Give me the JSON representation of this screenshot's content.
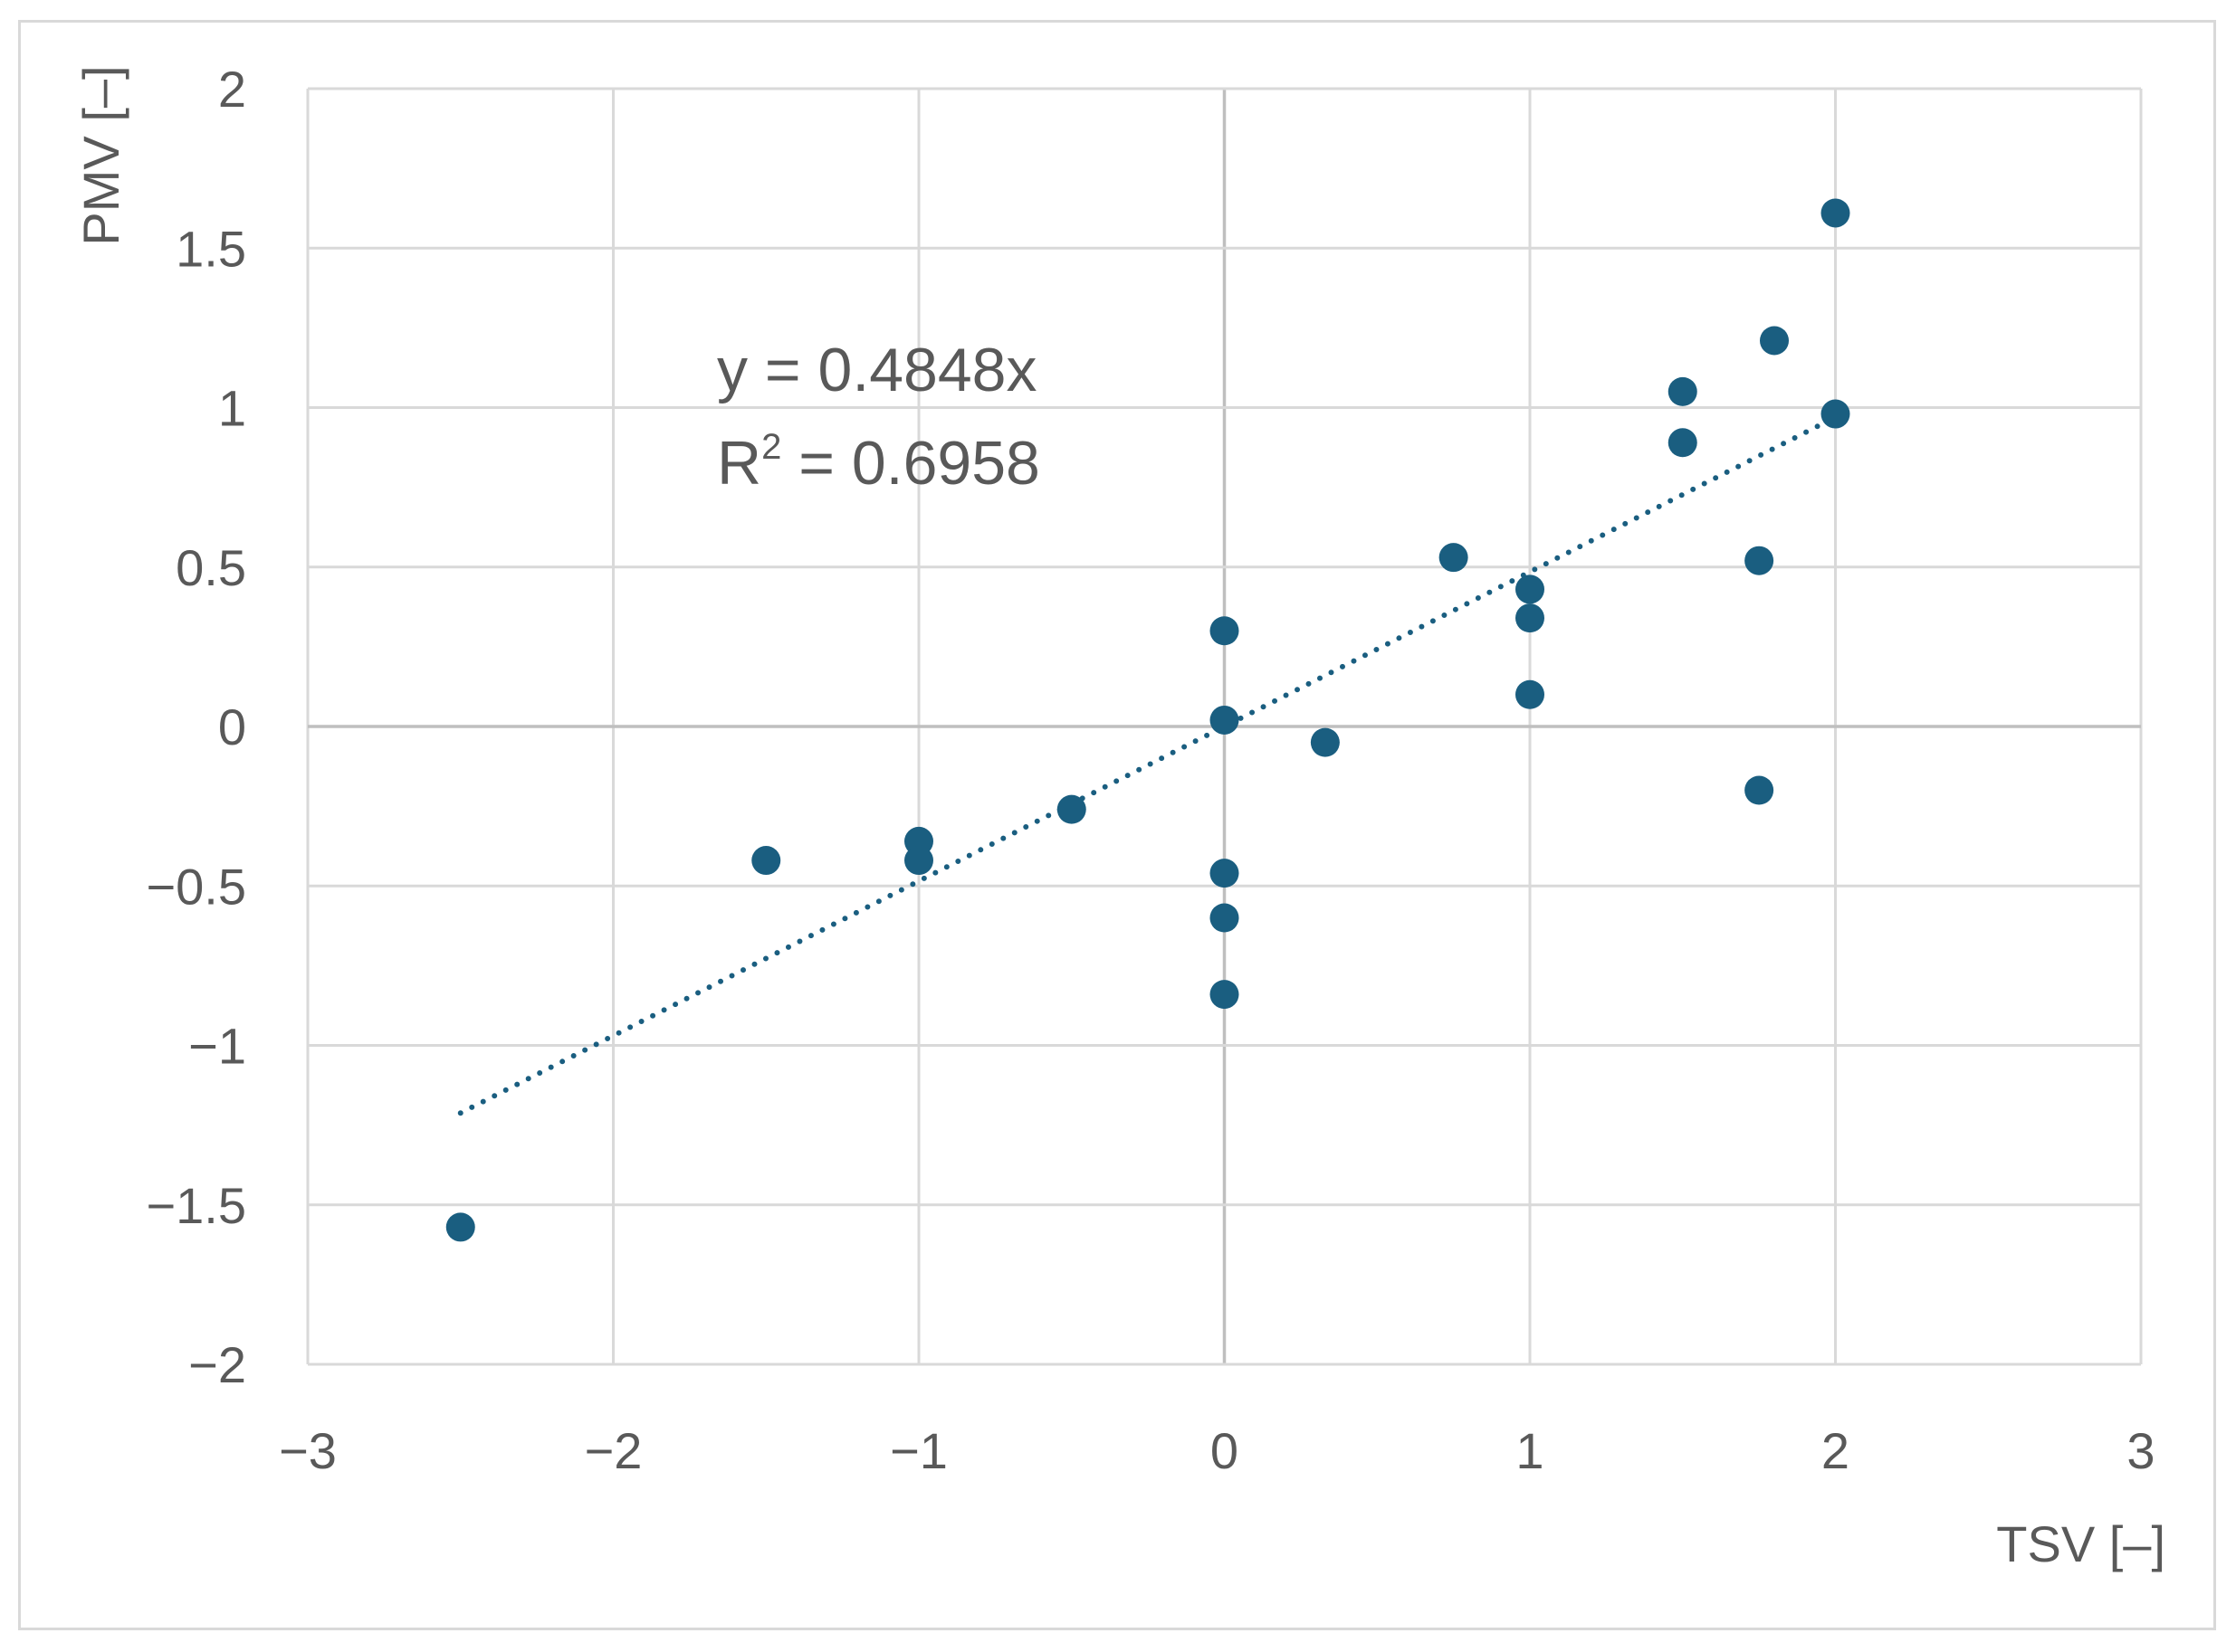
{
  "chart_data": {
    "type": "scatter",
    "xlabel": "TSV [–]",
    "ylabel": "PMV [–]",
    "xlim": [
      -3,
      3
    ],
    "ylim": [
      -2,
      2
    ],
    "x_ticks": [
      -3,
      -2,
      -1,
      0,
      1,
      2,
      3
    ],
    "y_ticks": [
      -2,
      -1.5,
      -1,
      -0.5,
      0,
      0.5,
      1,
      1.5,
      2
    ],
    "x_tick_labels": [
      "−3",
      "−2",
      "−1",
      "0",
      "1",
      "2",
      "3"
    ],
    "y_tick_labels": [
      "−2",
      "−1.5",
      "−1",
      "−0.5",
      "0",
      "0.5",
      "1",
      "1.5",
      "2"
    ],
    "grid": true,
    "marker_color": "#1a5e80",
    "points": [
      {
        "x": -2.5,
        "y": -1.57
      },
      {
        "x": -1.5,
        "y": -0.42
      },
      {
        "x": -1.0,
        "y": -0.36
      },
      {
        "x": -1.0,
        "y": -0.42
      },
      {
        "x": -0.5,
        "y": -0.26
      },
      {
        "x": 0.0,
        "y": 0.3
      },
      {
        "x": 0.0,
        "y": 0.02
      },
      {
        "x": 0.0,
        "y": -0.46
      },
      {
        "x": 0.0,
        "y": -0.6
      },
      {
        "x": 0.0,
        "y": -0.84
      },
      {
        "x": 0.33,
        "y": -0.05
      },
      {
        "x": 0.75,
        "y": 0.53
      },
      {
        "x": 1.0,
        "y": 0.43
      },
      {
        "x": 1.0,
        "y": 0.34
      },
      {
        "x": 1.0,
        "y": 0.1
      },
      {
        "x": 1.5,
        "y": 1.05
      },
      {
        "x": 1.5,
        "y": 0.89
      },
      {
        "x": 1.75,
        "y": 0.52
      },
      {
        "x": 1.75,
        "y": -0.2
      },
      {
        "x": 1.8,
        "y": 1.21
      },
      {
        "x": 2.0,
        "y": 1.61
      },
      {
        "x": 2.0,
        "y": 0.98
      }
    ],
    "trendline": {
      "type": "linear",
      "slope": 0.4848,
      "x_range": [
        -2.5,
        2.0
      ],
      "equation": "y = 0.4848x",
      "r2_label": "R",
      "r2_sup": "2",
      "r2_value": " = 0.6958",
      "style": "dotted",
      "color": "#1a5e80"
    }
  }
}
